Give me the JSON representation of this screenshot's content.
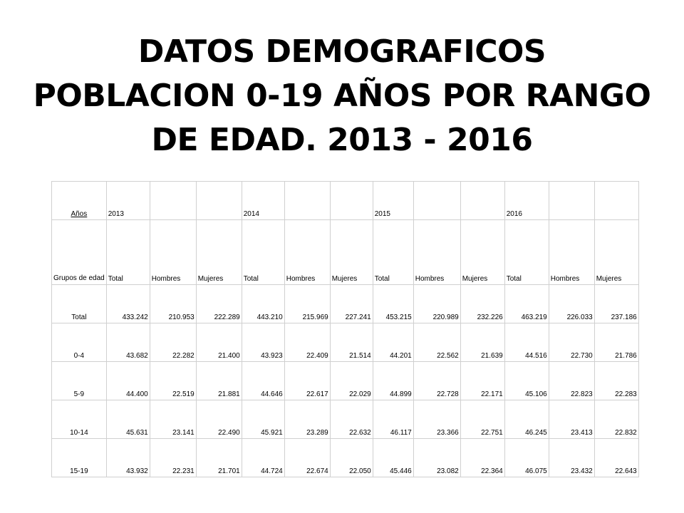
{
  "title": {
    "line1": "DATOS DEMOGRAFICOS",
    "line2": "POBLACION 0-19 AÑOS POR RANGO",
    "line3": "DE EDAD. 2013 - 2016"
  },
  "table": {
    "years_label": "Años",
    "years": [
      "2013",
      "2014",
      "2015",
      "2016"
    ],
    "group_label": "Grupos de edad",
    "subheaders": [
      "Total",
      "Hombres",
      "Mujeres",
      "Total",
      "Hombres",
      "Mujeres",
      "Total",
      "Hombres",
      "Mujeres",
      "Total",
      "Hombres",
      "Mujeres"
    ],
    "rows": [
      {
        "label": "Total",
        "values": [
          "433.242",
          "210.953",
          "222.289",
          "443.210",
          "215.969",
          "227.241",
          "453.215",
          "220.989",
          "232.226",
          "463.219",
          "226.033",
          "237.186"
        ]
      },
      {
        "label": "0-4",
        "values": [
          "43.682",
          "22.282",
          "21.400",
          "43.923",
          "22.409",
          "21.514",
          "44.201",
          "22.562",
          "21.639",
          "44.516",
          "22.730",
          "21.786"
        ]
      },
      {
        "label": "5-9",
        "values": [
          "44.400",
          "22.519",
          "21.881",
          "44.646",
          "22.617",
          "22.029",
          "44.899",
          "22.728",
          "22.171",
          "45.106",
          "22.823",
          "22.283"
        ]
      },
      {
        "label": "10-14",
        "values": [
          "45.631",
          "23.141",
          "22.490",
          "45.921",
          "23.289",
          "22.632",
          "46.117",
          "23.366",
          "22.751",
          "46.245",
          "23.413",
          "22.832"
        ]
      },
      {
        "label": "15-19",
        "values": [
          "43.932",
          "22.231",
          "21.701",
          "44.724",
          "22.674",
          "22.050",
          "45.446",
          "23.082",
          "22.364",
          "46.075",
          "23.432",
          "22.643"
        ]
      }
    ]
  }
}
